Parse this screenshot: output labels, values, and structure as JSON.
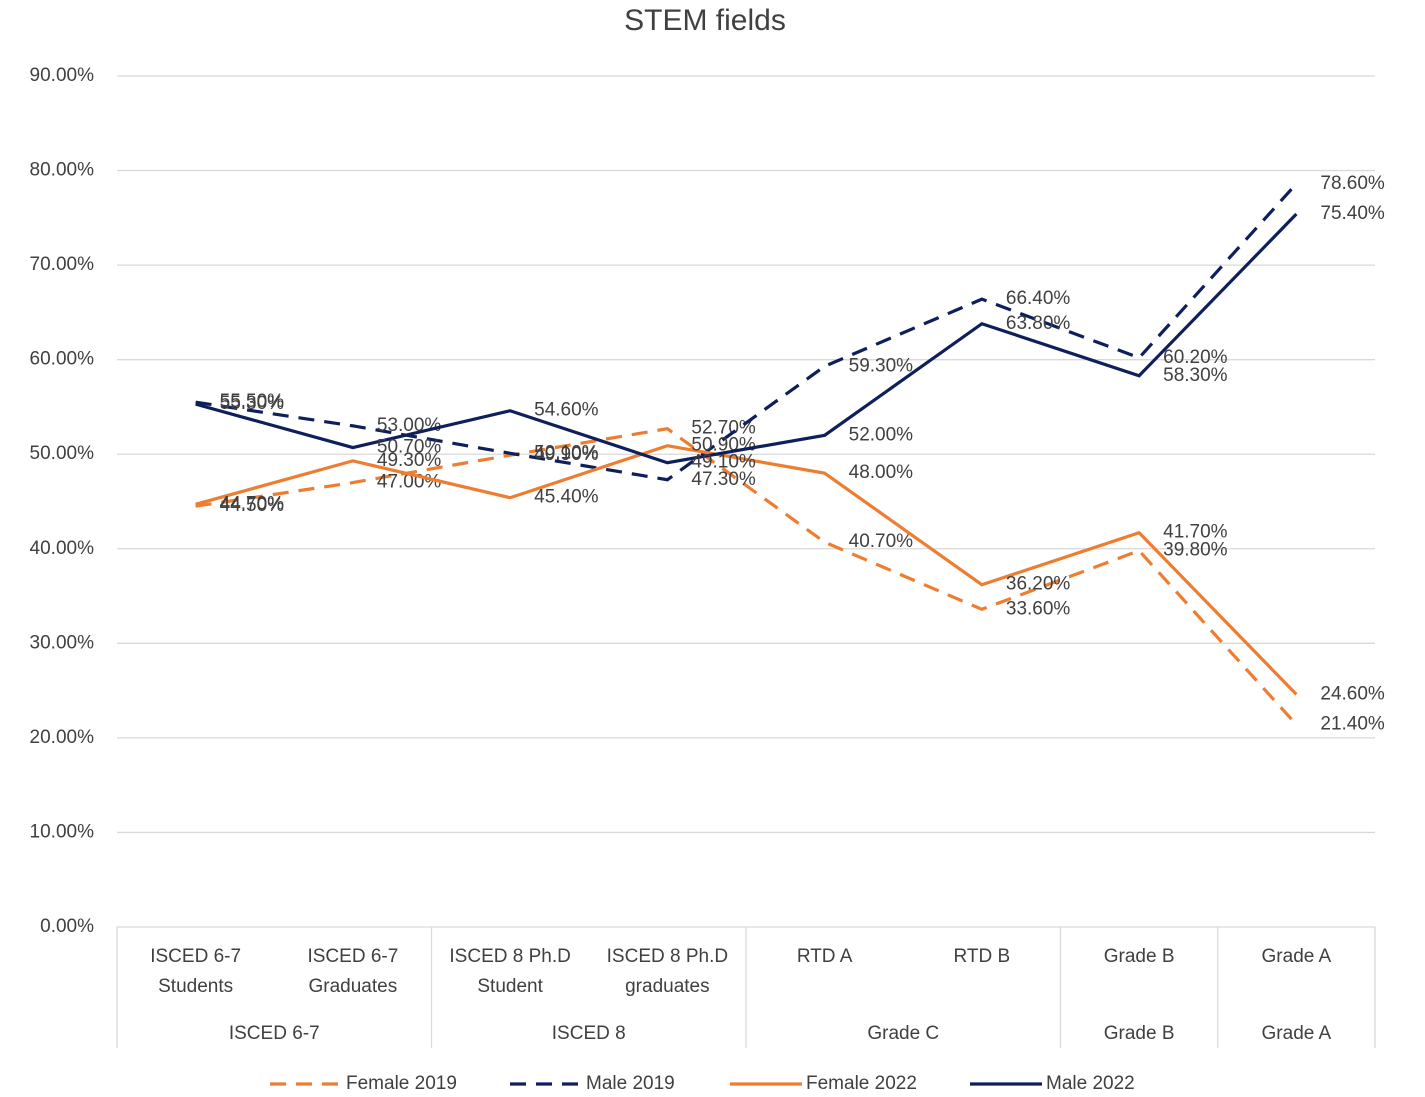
{
  "chart_data": {
    "type": "line",
    "title": "STEM fields",
    "categories": [
      [
        "ISCED 6-7",
        "Students"
      ],
      [
        "ISCED 6-7",
        "Graduates"
      ],
      [
        "ISCED 8 Ph.D",
        "Student"
      ],
      [
        "ISCED 8 Ph.D",
        "graduates"
      ],
      [
        "RTD A"
      ],
      [
        "RTD B"
      ],
      [
        "Grade B"
      ],
      [
        "Grade A"
      ]
    ],
    "groups": [
      {
        "label": "ISCED 6-7",
        "span": 2
      },
      {
        "label": "ISCED 8",
        "span": 2
      },
      {
        "label": "Grade C",
        "span": 2
      },
      {
        "label": "Grade B",
        "span": 1
      },
      {
        "label": "Grade A",
        "span": 1
      }
    ],
    "series": [
      {
        "name": "Female 2019",
        "color": "#ED7D31",
        "dashed": true,
        "values": [
          44.5,
          47.0,
          49.9,
          52.7,
          40.7,
          33.6,
          39.8,
          21.4
        ],
        "value_labels": [
          "44.50%",
          "47.00%",
          "49.90%",
          "52.70%",
          "40.70%",
          "33.60%",
          "39.80%",
          "21.40%"
        ]
      },
      {
        "name": "Male 2019",
        "color": "#0E1F5B",
        "dashed": true,
        "values": [
          55.5,
          53.0,
          50.1,
          47.3,
          59.3,
          66.4,
          60.2,
          78.6
        ],
        "value_labels": [
          "55.50%",
          "53.00%",
          "50.10%",
          "47.30%",
          "59.30%",
          "66.40%",
          "60.20%",
          "78.60%"
        ]
      },
      {
        "name": "Female 2022",
        "color": "#ED7D31",
        "dashed": false,
        "values": [
          44.7,
          49.3,
          45.4,
          50.9,
          48.0,
          36.2,
          41.7,
          24.6
        ],
        "value_labels": [
          "44.70%",
          "49.30%",
          "45.40%",
          "50.90%",
          "48.00%",
          "36.20%",
          "41.70%",
          "24.60%"
        ]
      },
      {
        "name": "Male 2022",
        "color": "#0E1F5B",
        "dashed": false,
        "values": [
          55.3,
          50.7,
          54.6,
          49.1,
          52.0,
          63.8,
          58.3,
          75.4
        ],
        "value_labels": [
          "55.30%",
          "50.70%",
          "54.60%",
          "49.10%",
          "52.00%",
          "63.80%",
          "58.30%",
          "75.40%"
        ]
      }
    ],
    "ylim": [
      0,
      90
    ],
    "yticks": [
      {
        "value": 0,
        "label": "0.00%"
      },
      {
        "value": 10,
        "label": "10.00%"
      },
      {
        "value": 20,
        "label": "20.00%"
      },
      {
        "value": 30,
        "label": "30.00%"
      },
      {
        "value": 40,
        "label": "40.00%"
      },
      {
        "value": 50,
        "label": "50.00%"
      },
      {
        "value": 60,
        "label": "60.00%"
      },
      {
        "value": 70,
        "label": "70.00%"
      },
      {
        "value": 80,
        "label": "80.00%"
      },
      {
        "value": 90,
        "label": "90.00%"
      }
    ],
    "grid": true,
    "legend": "bottom"
  }
}
